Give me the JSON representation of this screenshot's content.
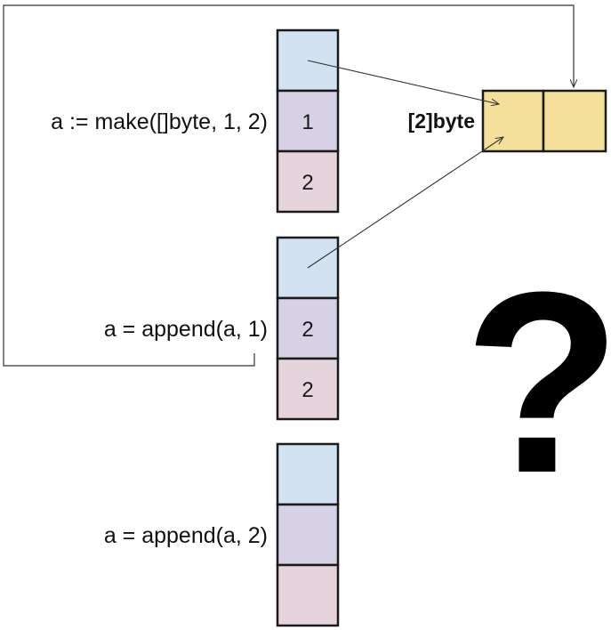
{
  "colors": {
    "ptr_cell": "#d2e2f1",
    "len_cell": "#d7d1e6",
    "cap_cell": "#e6d4dd",
    "array_cell": "#f4df9b",
    "stroke": "#1a1a1a",
    "thin_line": "#333333"
  },
  "slices": [
    {
      "label": "a := make([]byte, 1, 2)",
      "len": "1",
      "cap": "2"
    },
    {
      "label": "a = append(a, 1)",
      "len": "2",
      "cap": "2"
    },
    {
      "label": "a = append(a, 2)",
      "len": "",
      "cap": ""
    }
  ],
  "backing_array": {
    "type_label": "[2]byte",
    "cells": [
      "",
      ""
    ]
  },
  "question_mark": "?"
}
